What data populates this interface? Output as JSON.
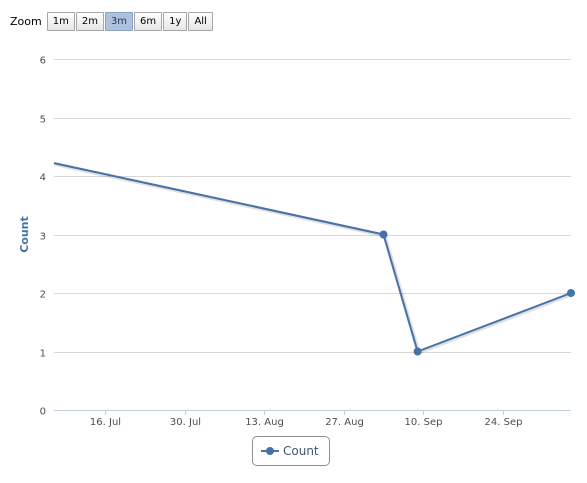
{
  "zoom": {
    "label": "Zoom",
    "buttons": [
      "1m",
      "2m",
      "3m",
      "6m",
      "1y",
      "All"
    ],
    "active": "3m"
  },
  "chart_data": {
    "type": "line",
    "title": "",
    "xlabel": "",
    "ylabel": "Count",
    "x_type": "date",
    "x_range": [
      "2012-07-07",
      "2012-10-06"
    ],
    "x_ticks": [
      "16. Jul",
      "30. Jul",
      "13. Aug",
      "27. Aug",
      "10. Sep",
      "24. Sep"
    ],
    "x_tick_dates": [
      "2012-07-16",
      "2012-07-30",
      "2012-08-13",
      "2012-08-27",
      "2012-09-10",
      "2012-09-24"
    ],
    "ylim": [
      0,
      6
    ],
    "y_ticks": [
      0,
      1,
      2,
      3,
      4,
      5,
      6
    ],
    "grid": "horizontal",
    "legend_position": "bottom-center",
    "series": [
      {
        "name": "Count",
        "color": "#4572a7",
        "points": [
          {
            "x": "2012-07-07",
            "y": 4.22
          },
          {
            "x": "2012-09-03",
            "y": 3
          },
          {
            "x": "2012-09-09",
            "y": 1
          },
          {
            "x": "2012-10-06",
            "y": 2
          }
        ]
      }
    ]
  }
}
